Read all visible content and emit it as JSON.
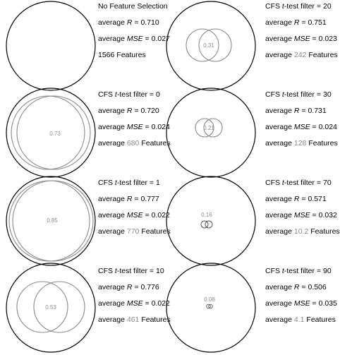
{
  "panels": [
    {
      "title": "No Feature Selection",
      "title_prefix": "",
      "title_italic": "",
      "title_suffix": "",
      "avg_r": "0.710",
      "avg_mse": "0.027",
      "features_prefix": "",
      "features_value": "1566",
      "features_suffix": " Features",
      "overlap_label": "",
      "has_venn": false
    },
    {
      "title": "",
      "title_prefix": "CFS ",
      "title_italic": "t",
      "title_suffix": "-test filter = 20",
      "avg_r": "0.751",
      "avg_mse": "0.023",
      "features_prefix": "average ",
      "features_value": "242",
      "features_suffix": " Features",
      "overlap_label": "0.31",
      "has_venn": true
    },
    {
      "title": "",
      "title_prefix": "CFS ",
      "title_italic": "t",
      "title_suffix": "-test filter = 0",
      "avg_r": "0.720",
      "avg_mse": "0.024",
      "features_prefix": "average ",
      "features_value": "680",
      "features_suffix": " Features",
      "overlap_label": "0.73",
      "has_venn": true
    },
    {
      "title": "",
      "title_prefix": "CFS ",
      "title_italic": "t",
      "title_suffix": "-test filter = 30",
      "avg_r": "0.731",
      "avg_mse": "0.024",
      "features_prefix": "average ",
      "features_value": "128",
      "features_suffix": " Features",
      "overlap_label": "0.21",
      "has_venn": true
    },
    {
      "title": "",
      "title_prefix": "CFS ",
      "title_italic": "t",
      "title_suffix": "-test filter = 1",
      "avg_r": "0.777",
      "avg_mse": "0.022",
      "features_prefix": "average ",
      "features_value": "770",
      "features_suffix": " Features",
      "overlap_label": "0.85",
      "has_venn": true
    },
    {
      "title": "",
      "title_prefix": "CFS ",
      "title_italic": "t",
      "title_suffix": "-test filter = 70",
      "avg_r": "0.571",
      "avg_mse": "0.032",
      "features_prefix": "average ",
      "features_value": "10.2",
      "features_suffix": " Features",
      "overlap_label": "0.16",
      "has_venn": true
    },
    {
      "title": "",
      "title_prefix": "CFS ",
      "title_italic": "t",
      "title_suffix": "-test filter = 10",
      "avg_r": "0.776",
      "avg_mse": "0.022",
      "features_prefix": "average ",
      "features_value": "461",
      "features_suffix": " Features",
      "overlap_label": "0.53",
      "has_venn": true
    },
    {
      "title": "",
      "title_prefix": "CFS ",
      "title_italic": "t",
      "title_suffix": "-test filter = 90",
      "avg_r": "0.506",
      "avg_mse": "0.035",
      "features_prefix": "average ",
      "features_value": "4.1",
      "features_suffix": " Features",
      "overlap_label": "0.08",
      "has_venn": true
    }
  ],
  "common": {
    "avg_word": "average ",
    "r_symbol": "R",
    "mse_symbol": "MSE",
    "equals": " = "
  },
  "colors": {
    "outer_circle": "#000000",
    "venn_circle": "#8a8a8a",
    "label": "#8a8a8a"
  }
}
